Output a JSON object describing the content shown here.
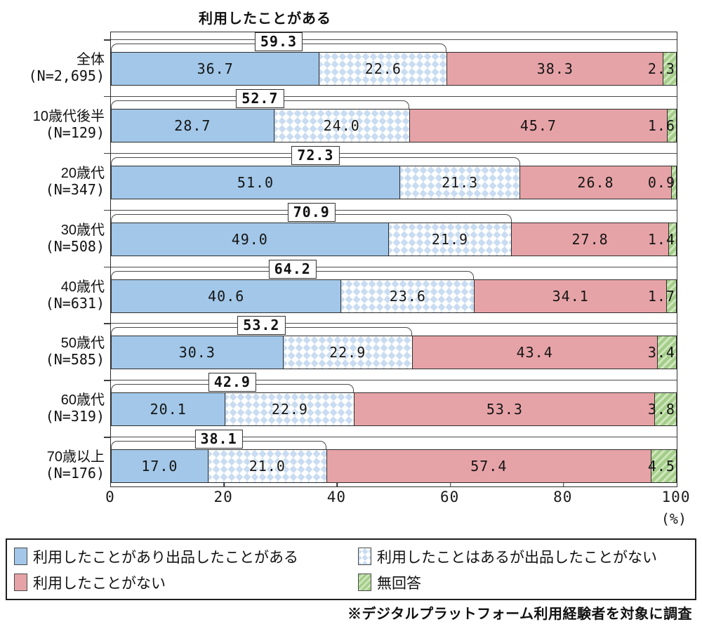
{
  "title": "利用したことがある",
  "unit_label": "(%)",
  "footnote": "※デジタルプラットフォーム利用経験者を対象に調査",
  "chart_data": {
    "type": "bar",
    "orientation": "horizontal",
    "stacked": true,
    "title": "利用したことがある",
    "xlim": [
      0,
      100
    ],
    "x_ticks": [
      0,
      20,
      40,
      60,
      80,
      100
    ],
    "x_tick_labels": [
      "0",
      "20",
      "40",
      "60",
      "80",
      "100"
    ],
    "x_unit": "(%)",
    "categories": [
      "全体",
      "10歳代後半",
      "20歳代",
      "30歳代",
      "40歳代",
      "50歳代",
      "60歳代",
      "70歳以上"
    ],
    "sample_sizes": [
      "(N=2,695)",
      "(N=129)",
      "(N=347)",
      "(N=508)",
      "(N=631)",
      "(N=585)",
      "(N=319)",
      "(N=176)"
    ],
    "series": [
      {
        "name": "利用したことがあり出品したことがある",
        "color": "#a2c7e8",
        "pattern": "solid",
        "values": [
          36.7,
          28.7,
          51.0,
          49.0,
          40.6,
          30.3,
          20.1,
          17.0
        ],
        "value_labels": [
          "36.7",
          "28.7",
          "51.0",
          "49.0",
          "40.6",
          "30.3",
          "20.1",
          "17.0"
        ]
      },
      {
        "name": "利用したことはあるが出品したことがない",
        "color": "#cfe0f3",
        "pattern": "triangle-dots",
        "values": [
          22.6,
          24.0,
          21.3,
          21.9,
          23.6,
          22.9,
          22.9,
          21.0
        ],
        "value_labels": [
          "22.6",
          "24.0",
          "21.3",
          "21.9",
          "23.6",
          "22.9",
          "22.9",
          "21.0"
        ]
      },
      {
        "name": "利用したことがない",
        "color": "#e6a3a7",
        "pattern": "solid",
        "values": [
          38.3,
          45.7,
          26.8,
          27.8,
          34.1,
          43.4,
          53.3,
          57.4
        ],
        "value_labels": [
          "38.3",
          "45.7",
          "26.8",
          "27.8",
          "34.1",
          "43.4",
          "53.3",
          "57.4"
        ]
      },
      {
        "name": "無回答",
        "color": "#a4cd8a",
        "pattern": "diagonal-stripes",
        "values": [
          2.3,
          1.6,
          0.9,
          1.4,
          1.7,
          3.4,
          3.8,
          4.5
        ],
        "value_labels": [
          "2.3",
          "1.6",
          "0.9",
          "1.4",
          "1.7",
          "3.4",
          "3.8",
          "4.5"
        ]
      }
    ],
    "bracket_annotation": {
      "label": "利用したことがある",
      "totals": [
        59.3,
        52.7,
        72.3,
        70.9,
        64.2,
        53.2,
        42.9,
        38.1
      ],
      "total_labels": [
        "59.3",
        "52.7",
        "72.3",
        "70.9",
        "64.2",
        "53.2",
        "42.9",
        "38.1"
      ]
    },
    "legend_position": "bottom",
    "grid": false
  }
}
